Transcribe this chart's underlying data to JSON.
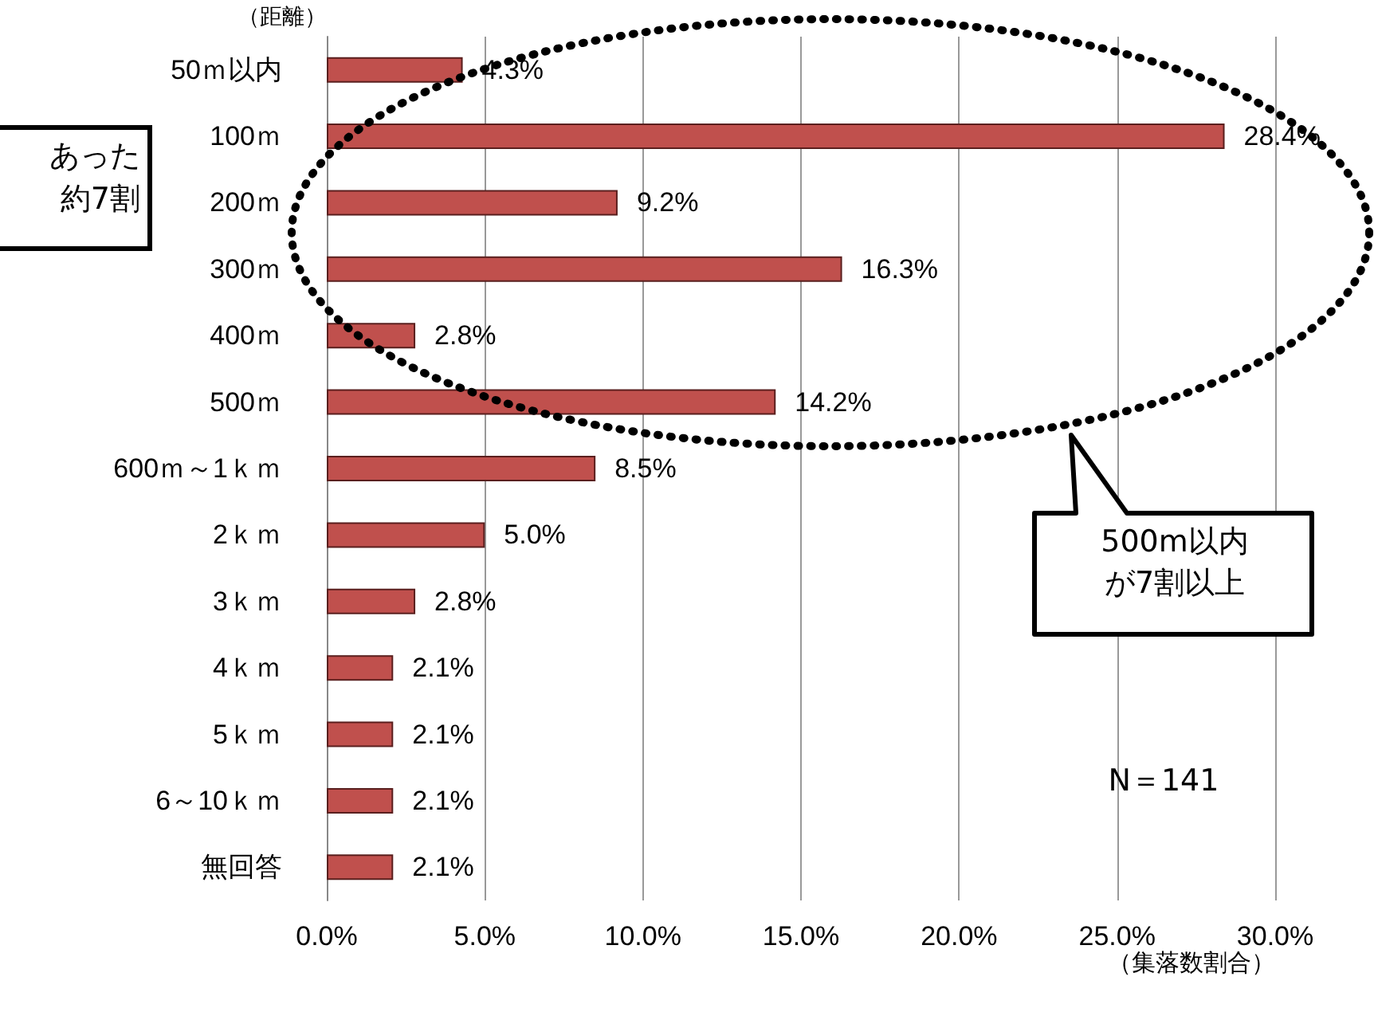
{
  "chart_data": {
    "type": "bar",
    "orientation": "horizontal",
    "ylabel": "（距離）",
    "xlabel": "（集落数割合）",
    "categories": [
      "50ｍ以内",
      "100ｍ",
      "200ｍ",
      "300ｍ",
      "400ｍ",
      "500ｍ",
      "600ｍ～1ｋｍ",
      "2ｋｍ",
      "3ｋｍ",
      "4ｋｍ",
      "5ｋｍ",
      "6～10ｋｍ",
      "無回答"
    ],
    "values": [
      4.3,
      28.4,
      9.2,
      16.3,
      2.8,
      14.2,
      8.5,
      5.0,
      2.8,
      2.1,
      2.1,
      2.1,
      2.1
    ],
    "value_labels": [
      "4.3%",
      "28.4%",
      "9.2%",
      "16.3%",
      "2.8%",
      "14.2%",
      "8.5%",
      "5.0%",
      "2.8%",
      "2.1%",
      "2.1%",
      "2.1%",
      "2.1%"
    ],
    "color": "#c0504d",
    "xlim": [
      0,
      30
    ],
    "xticks": [
      {
        "value": 0,
        "label": "0.0%"
      },
      {
        "value": 5,
        "label": "5.0%"
      },
      {
        "value": 10,
        "label": "10.0%"
      },
      {
        "value": 15,
        "label": "15.0%"
      },
      {
        "value": 20,
        "label": "20.0%"
      },
      {
        "value": 25,
        "label": "25.0%"
      },
      {
        "value": 30,
        "label": "30.0%"
      }
    ],
    "grid": "x",
    "annotations": [
      "あった",
      "約7割",
      "500m以内",
      "が7割以上",
      "N＝141"
    ]
  }
}
